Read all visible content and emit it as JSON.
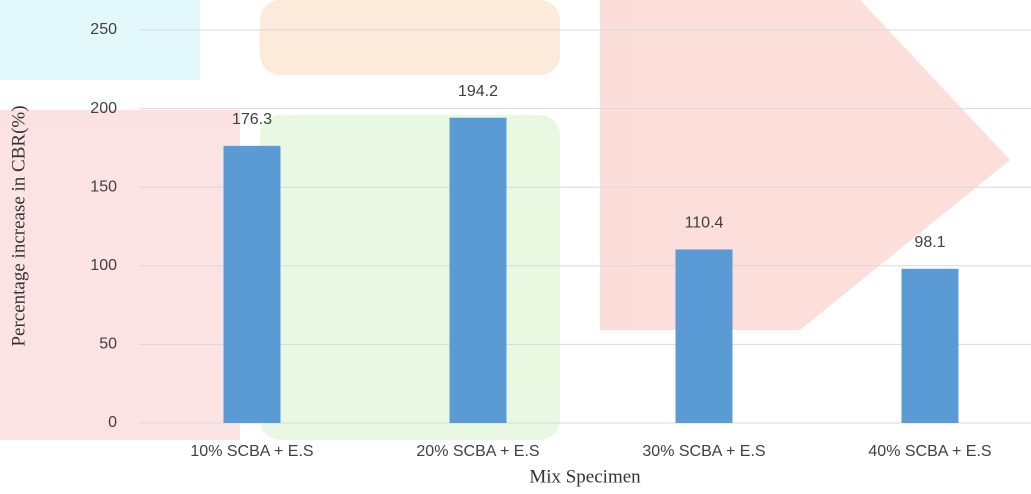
{
  "chart_data": {
    "type": "bar",
    "x_label": "Mix Specimen",
    "y_label": "Percentage increase in CBR(%)",
    "categories": [
      "10% SCBA + E.S",
      "20% SCBA + E.S",
      "30% SCBA + E.S",
      "40% SCBA + E.S"
    ],
    "values": [
      176.3,
      194.2,
      110.4,
      98.1
    ],
    "color": "#5b9bd5",
    "ylim": [
      0,
      250
    ],
    "yticks": [
      0,
      50,
      100,
      150,
      200,
      250
    ],
    "grid": true
  }
}
